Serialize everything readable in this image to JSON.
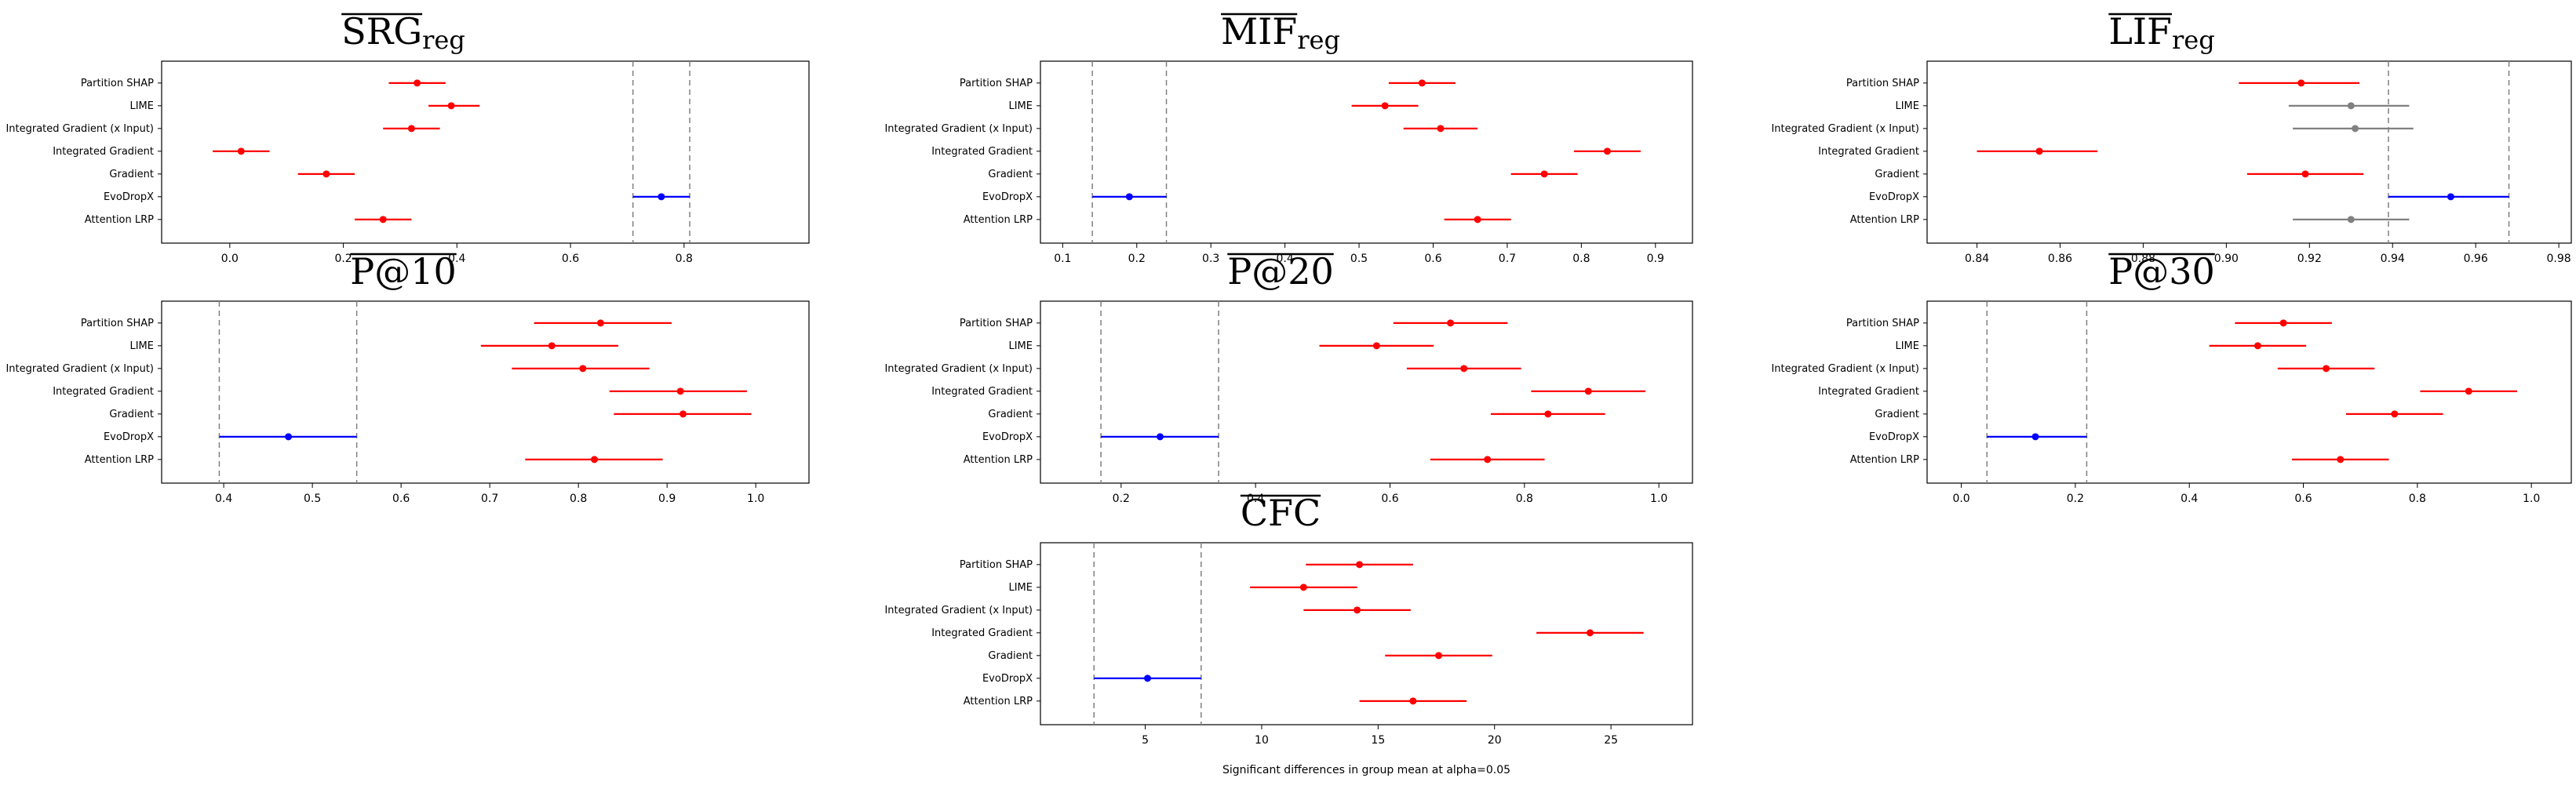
{
  "figure": {
    "methods": [
      "Partition SHAP",
      "LIME",
      "Integrated Gradient (x Input)",
      "Integrated Gradient",
      "Gradient",
      "EvoDropX",
      "Attention LRP"
    ],
    "xlabel_bottom": "Significant differences in group mean at alpha=0.05",
    "colors": {
      "significant": "#ff0000",
      "reference": "#0000ff",
      "not_significant": "#808080",
      "ref_lines": "#808080"
    }
  },
  "chart_data": [
    {
      "id": "srg",
      "type": "scatter",
      "title": {
        "main": "SRG",
        "sub": "reg"
      },
      "xlim": [
        -0.12,
        1.02
      ],
      "ticks": [
        "0.0",
        "0.2",
        "0.4",
        "0.6",
        "0.8"
      ],
      "tick_values": [
        0.0,
        0.2,
        0.4,
        0.6,
        0.8
      ],
      "points": [
        {
          "label": "Partition SHAP",
          "mean": 0.33,
          "lo": 0.28,
          "hi": 0.38,
          "status": "significant"
        },
        {
          "label": "LIME",
          "mean": 0.39,
          "lo": 0.35,
          "hi": 0.44,
          "status": "significant"
        },
        {
          "label": "Integrated Gradient (x Input)",
          "mean": 0.32,
          "lo": 0.27,
          "hi": 0.37,
          "status": "significant"
        },
        {
          "label": "Integrated Gradient",
          "mean": 0.02,
          "lo": -0.03,
          "hi": 0.07,
          "status": "significant"
        },
        {
          "label": "Gradient",
          "mean": 0.17,
          "lo": 0.12,
          "hi": 0.22,
          "status": "significant"
        },
        {
          "label": "EvoDropX",
          "mean": 0.76,
          "lo": 0.71,
          "hi": 0.81,
          "status": "reference"
        },
        {
          "label": "Attention LRP",
          "mean": 0.27,
          "lo": 0.22,
          "hi": 0.32,
          "status": "significant"
        }
      ]
    },
    {
      "id": "mif",
      "type": "scatter",
      "title": {
        "main": "MIF",
        "sub": "reg"
      },
      "xlim": [
        0.07,
        0.95
      ],
      "ticks": [
        "0.1",
        "0.2",
        "0.3",
        "0.4",
        "0.5",
        "0.6",
        "0.7",
        "0.8",
        "0.9"
      ],
      "tick_values": [
        0.1,
        0.2,
        0.3,
        0.4,
        0.5,
        0.6,
        0.7,
        0.8,
        0.9
      ],
      "points": [
        {
          "label": "Partition SHAP",
          "mean": 0.585,
          "lo": 0.54,
          "hi": 0.63,
          "status": "significant"
        },
        {
          "label": "LIME",
          "mean": 0.535,
          "lo": 0.49,
          "hi": 0.58,
          "status": "significant"
        },
        {
          "label": "Integrated Gradient (x Input)",
          "mean": 0.61,
          "lo": 0.56,
          "hi": 0.66,
          "status": "significant"
        },
        {
          "label": "Integrated Gradient",
          "mean": 0.835,
          "lo": 0.79,
          "hi": 0.88,
          "status": "significant"
        },
        {
          "label": "Gradient",
          "mean": 0.75,
          "lo": 0.705,
          "hi": 0.795,
          "status": "significant"
        },
        {
          "label": "EvoDropX",
          "mean": 0.19,
          "lo": 0.14,
          "hi": 0.24,
          "status": "reference"
        },
        {
          "label": "Attention LRP",
          "mean": 0.66,
          "lo": 0.615,
          "hi": 0.705,
          "status": "significant"
        }
      ]
    },
    {
      "id": "lif",
      "type": "scatter",
      "title": {
        "main": "LIF",
        "sub": "reg"
      },
      "xlim": [
        0.828,
        0.983
      ],
      "ticks": [
        "0.84",
        "0.86",
        "0.88",
        "0.90",
        "0.92",
        "0.94",
        "0.96",
        "0.98"
      ],
      "tick_values": [
        0.84,
        0.86,
        0.88,
        0.9,
        0.92,
        0.94,
        0.96,
        0.98
      ],
      "points": [
        {
          "label": "Partition SHAP",
          "mean": 0.918,
          "lo": 0.903,
          "hi": 0.932,
          "status": "significant"
        },
        {
          "label": "LIME",
          "mean": 0.93,
          "lo": 0.915,
          "hi": 0.944,
          "status": "not_significant"
        },
        {
          "label": "Integrated Gradient (x Input)",
          "mean": 0.931,
          "lo": 0.916,
          "hi": 0.945,
          "status": "not_significant"
        },
        {
          "label": "Integrated Gradient",
          "mean": 0.855,
          "lo": 0.84,
          "hi": 0.869,
          "status": "significant"
        },
        {
          "label": "Gradient",
          "mean": 0.919,
          "lo": 0.905,
          "hi": 0.933,
          "status": "significant"
        },
        {
          "label": "EvoDropX",
          "mean": 0.954,
          "lo": 0.939,
          "hi": 0.968,
          "status": "reference"
        },
        {
          "label": "Attention LRP",
          "mean": 0.93,
          "lo": 0.916,
          "hi": 0.944,
          "status": "not_significant"
        }
      ]
    },
    {
      "id": "p10",
      "type": "scatter",
      "title": {
        "main": "P@10",
        "sub": ""
      },
      "xlim": [
        0.33,
        1.06
      ],
      "ticks": [
        "0.4",
        "0.5",
        "0.6",
        "0.7",
        "0.8",
        "0.9",
        "1.0"
      ],
      "tick_values": [
        0.4,
        0.5,
        0.6,
        0.7,
        0.8,
        0.9,
        1.0
      ],
      "points": [
        {
          "label": "Partition SHAP",
          "mean": 0.825,
          "lo": 0.75,
          "hi": 0.905,
          "status": "significant"
        },
        {
          "label": "LIME",
          "mean": 0.77,
          "lo": 0.69,
          "hi": 0.845,
          "status": "significant"
        },
        {
          "label": "Integrated Gradient (x Input)",
          "mean": 0.805,
          "lo": 0.725,
          "hi": 0.88,
          "status": "significant"
        },
        {
          "label": "Integrated Gradient",
          "mean": 0.915,
          "lo": 0.835,
          "hi": 0.99,
          "status": "significant"
        },
        {
          "label": "Gradient",
          "mean": 0.918,
          "lo": 0.84,
          "hi": 0.995,
          "status": "significant"
        },
        {
          "label": "EvoDropX",
          "mean": 0.473,
          "lo": 0.395,
          "hi": 0.55,
          "status": "reference"
        },
        {
          "label": "Attention LRP",
          "mean": 0.818,
          "lo": 0.74,
          "hi": 0.895,
          "status": "significant"
        }
      ]
    },
    {
      "id": "p20",
      "type": "scatter",
      "title": {
        "main": "P@20",
        "sub": ""
      },
      "xlim": [
        0.08,
        1.05
      ],
      "ticks": [
        "0.2",
        "0.4",
        "0.6",
        "0.8",
        "1.0"
      ],
      "tick_values": [
        0.2,
        0.4,
        0.6,
        0.8,
        1.0
      ],
      "points": [
        {
          "label": "Partition SHAP",
          "mean": 0.69,
          "lo": 0.605,
          "hi": 0.775,
          "status": "significant"
        },
        {
          "label": "LIME",
          "mean": 0.58,
          "lo": 0.495,
          "hi": 0.665,
          "status": "significant"
        },
        {
          "label": "Integrated Gradient (x Input)",
          "mean": 0.71,
          "lo": 0.625,
          "hi": 0.795,
          "status": "significant"
        },
        {
          "label": "Integrated Gradient",
          "mean": 0.895,
          "lo": 0.81,
          "hi": 0.98,
          "status": "significant"
        },
        {
          "label": "Gradient",
          "mean": 0.835,
          "lo": 0.75,
          "hi": 0.92,
          "status": "significant"
        },
        {
          "label": "EvoDropX",
          "mean": 0.258,
          "lo": 0.17,
          "hi": 0.345,
          "status": "reference"
        },
        {
          "label": "Attention LRP",
          "mean": 0.745,
          "lo": 0.66,
          "hi": 0.83,
          "status": "significant"
        }
      ]
    },
    {
      "id": "p30",
      "type": "scatter",
      "title": {
        "main": "P@30",
        "sub": ""
      },
      "xlim": [
        -0.06,
        1.07
      ],
      "ticks": [
        "0.0",
        "0.2",
        "0.4",
        "0.6",
        "0.8",
        "1.0"
      ],
      "tick_values": [
        0.0,
        0.2,
        0.4,
        0.6,
        0.8,
        1.0
      ],
      "points": [
        {
          "label": "Partition SHAP",
          "mean": 0.565,
          "lo": 0.48,
          "hi": 0.65,
          "status": "significant"
        },
        {
          "label": "LIME",
          "mean": 0.52,
          "lo": 0.435,
          "hi": 0.605,
          "status": "significant"
        },
        {
          "label": "Integrated Gradient (x Input)",
          "mean": 0.64,
          "lo": 0.555,
          "hi": 0.725,
          "status": "significant"
        },
        {
          "label": "Integrated Gradient",
          "mean": 0.89,
          "lo": 0.805,
          "hi": 0.975,
          "status": "significant"
        },
        {
          "label": "Gradient",
          "mean": 0.76,
          "lo": 0.675,
          "hi": 0.845,
          "status": "significant"
        },
        {
          "label": "EvoDropX",
          "mean": 0.13,
          "lo": 0.045,
          "hi": 0.22,
          "status": "reference"
        },
        {
          "label": "Attention LRP",
          "mean": 0.665,
          "lo": 0.58,
          "hi": 0.75,
          "status": "significant"
        }
      ]
    },
    {
      "id": "cfc",
      "type": "scatter",
      "title": {
        "main": "CFC",
        "sub": ""
      },
      "xlim": [
        0.5,
        28.5
      ],
      "ticks": [
        "5",
        "10",
        "15",
        "20",
        "25"
      ],
      "tick_values": [
        5,
        10,
        15,
        20,
        25
      ],
      "points": [
        {
          "label": "Partition SHAP",
          "mean": 14.2,
          "lo": 11.9,
          "hi": 16.5,
          "status": "significant"
        },
        {
          "label": "LIME",
          "mean": 11.8,
          "lo": 9.5,
          "hi": 14.1,
          "status": "significant"
        },
        {
          "label": "Integrated Gradient (x Input)",
          "mean": 14.1,
          "lo": 11.8,
          "hi": 16.4,
          "status": "significant"
        },
        {
          "label": "Integrated Gradient",
          "mean": 24.1,
          "lo": 21.8,
          "hi": 26.4,
          "status": "significant"
        },
        {
          "label": "Gradient",
          "mean": 17.6,
          "lo": 15.3,
          "hi": 19.9,
          "status": "significant"
        },
        {
          "label": "EvoDropX",
          "mean": 5.1,
          "lo": 2.8,
          "hi": 7.4,
          "status": "reference"
        },
        {
          "label": "Attention LRP",
          "mean": 16.5,
          "lo": 14.2,
          "hi": 18.8,
          "status": "significant"
        }
      ]
    }
  ]
}
